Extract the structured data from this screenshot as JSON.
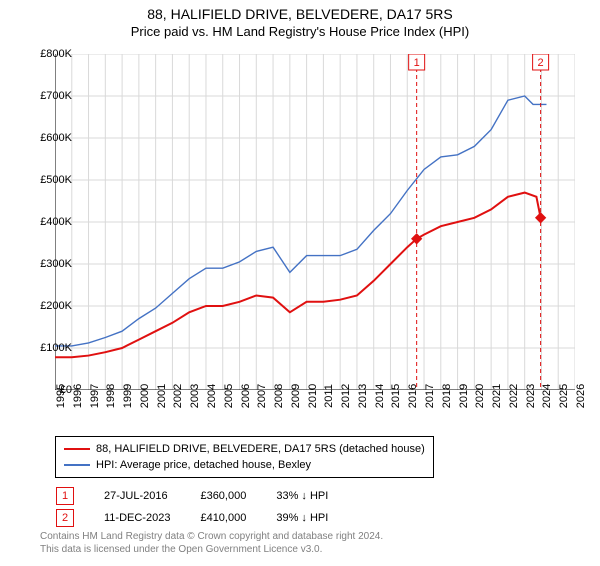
{
  "title_line1": "88, HALIFIELD DRIVE, BELVEDERE, DA17 5RS",
  "title_line2": "Price paid vs. HM Land Registry's House Price Index (HPI)",
  "chart": {
    "type": "line",
    "background_color": "#ffffff",
    "grid_color": "#d9d9d9",
    "axis_color": "#000000",
    "xlim": [
      1995,
      2026
    ],
    "ylim": [
      0,
      800000
    ],
    "xtick_step": 1,
    "ytick_step": 100000,
    "xticks": [
      1995,
      1996,
      1997,
      1998,
      1999,
      2000,
      2001,
      2002,
      2003,
      2004,
      2005,
      2006,
      2007,
      2008,
      2009,
      2010,
      2011,
      2012,
      2013,
      2014,
      2015,
      2016,
      2017,
      2018,
      2019,
      2020,
      2021,
      2022,
      2023,
      2024,
      2025,
      2026
    ],
    "ytick_labels": [
      "£0",
      "£100K",
      "£200K",
      "£300K",
      "£400K",
      "£500K",
      "£600K",
      "£700K",
      "£800K"
    ],
    "series": [
      {
        "name": "red",
        "color": "#e01010",
        "width": 2,
        "data": [
          [
            1995,
            78000
          ],
          [
            1996,
            78000
          ],
          [
            1997,
            82000
          ],
          [
            1998,
            90000
          ],
          [
            1999,
            100000
          ],
          [
            2000,
            120000
          ],
          [
            2001,
            140000
          ],
          [
            2002,
            160000
          ],
          [
            2003,
            185000
          ],
          [
            2004,
            200000
          ],
          [
            2005,
            200000
          ],
          [
            2006,
            210000
          ],
          [
            2007,
            225000
          ],
          [
            2008,
            220000
          ],
          [
            2009,
            185000
          ],
          [
            2010,
            210000
          ],
          [
            2011,
            210000
          ],
          [
            2012,
            215000
          ],
          [
            2013,
            225000
          ],
          [
            2014,
            260000
          ],
          [
            2015,
            300000
          ],
          [
            2016,
            340000
          ],
          [
            2016.56,
            360000
          ],
          [
            2017,
            370000
          ],
          [
            2018,
            390000
          ],
          [
            2019,
            400000
          ],
          [
            2020,
            410000
          ],
          [
            2021,
            430000
          ],
          [
            2022,
            460000
          ],
          [
            2023,
            470000
          ],
          [
            2023.7,
            460000
          ],
          [
            2023.95,
            410000
          ]
        ]
      },
      {
        "name": "blue",
        "color": "#4472c4",
        "width": 1.4,
        "data": [
          [
            1995,
            105000
          ],
          [
            1996,
            105000
          ],
          [
            1997,
            112000
          ],
          [
            1998,
            125000
          ],
          [
            1999,
            140000
          ],
          [
            2000,
            170000
          ],
          [
            2001,
            195000
          ],
          [
            2002,
            230000
          ],
          [
            2003,
            265000
          ],
          [
            2004,
            290000
          ],
          [
            2005,
            290000
          ],
          [
            2006,
            305000
          ],
          [
            2007,
            330000
          ],
          [
            2008,
            340000
          ],
          [
            2009,
            280000
          ],
          [
            2010,
            320000
          ],
          [
            2011,
            320000
          ],
          [
            2012,
            320000
          ],
          [
            2013,
            335000
          ],
          [
            2014,
            380000
          ],
          [
            2015,
            420000
          ],
          [
            2016,
            475000
          ],
          [
            2017,
            525000
          ],
          [
            2018,
            555000
          ],
          [
            2019,
            560000
          ],
          [
            2020,
            580000
          ],
          [
            2021,
            620000
          ],
          [
            2022,
            690000
          ],
          [
            2023,
            700000
          ],
          [
            2023.5,
            680000
          ],
          [
            2024,
            680000
          ],
          [
            2024.3,
            680000
          ]
        ]
      }
    ],
    "markers": [
      {
        "num": "1",
        "x": 2016.56,
        "y": 360000,
        "color": "#e01010",
        "diamond_fill": "#e01010",
        "label_y": 800000
      },
      {
        "num": "2",
        "x": 2023.95,
        "y": 410000,
        "color": "#e01010",
        "diamond_fill": "#e01010",
        "label_y": 800000
      }
    ]
  },
  "legend": [
    {
      "color": "#e01010",
      "label": "88, HALIFIELD DRIVE, BELVEDERE, DA17 5RS (detached house)"
    },
    {
      "color": "#4472c4",
      "label": "HPI: Average price, detached house, Bexley"
    }
  ],
  "marker_rows": [
    {
      "num": "1",
      "color": "#e01010",
      "date": "27-JUL-2016",
      "price": "£360,000",
      "diff": "33% ↓ HPI"
    },
    {
      "num": "2",
      "color": "#e01010",
      "date": "11-DEC-2023",
      "price": "£410,000",
      "diff": "39% ↓ HPI"
    }
  ],
  "footer_line1": "Contains HM Land Registry data © Crown copyright and database right 2024.",
  "footer_line2": "This data is licensed under the Open Government Licence v3.0."
}
